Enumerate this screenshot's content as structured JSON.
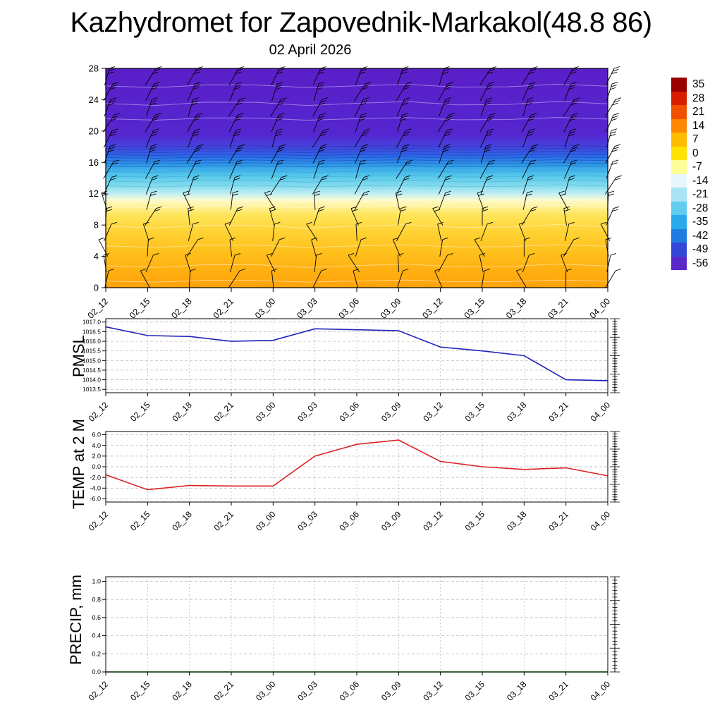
{
  "title": "Kazhydromet for Zapovednik-Markakol(48.8 86)",
  "date": "02 April 2026",
  "chart_data": [
    {
      "type": "heatmap",
      "title": "02 April 2026",
      "description": "Vertical cross-section: temperature shading (deg C) with wind barbs; warm colors near surface, cold aloft",
      "x": [
        "02_12",
        "02_15",
        "02_18",
        "02_21",
        "03_00",
        "03_03",
        "03_06",
        "03_09",
        "03_12",
        "03_15",
        "03_18",
        "03_21",
        "04_00"
      ],
      "ylim": [
        0,
        28
      ],
      "yticks": [
        0,
        4,
        8,
        12,
        16,
        20,
        24,
        28
      ],
      "gradient": [
        {
          "pos": 0.0,
          "color": "#5a1ec8"
        },
        {
          "pos": 0.3,
          "color": "#5526cf"
        },
        {
          "pos": 0.36,
          "color": "#4444dd"
        },
        {
          "pos": 0.4,
          "color": "#2a6ae8"
        },
        {
          "pos": 0.44,
          "color": "#2e9de8"
        },
        {
          "pos": 0.49,
          "color": "#55c8ea"
        },
        {
          "pos": 0.54,
          "color": "#8adeee"
        },
        {
          "pos": 0.575,
          "color": "#c8f0f2"
        },
        {
          "pos": 0.6,
          "color": "#fbfbd0"
        },
        {
          "pos": 0.625,
          "color": "#fff3a0"
        },
        {
          "pos": 0.67,
          "color": "#ffe458"
        },
        {
          "pos": 0.75,
          "color": "#ffd232"
        },
        {
          "pos": 0.84,
          "color": "#ffc01c"
        },
        {
          "pos": 0.93,
          "color": "#ffae10"
        },
        {
          "pos": 1.0,
          "color": "#ffa30a"
        }
      ],
      "colorbar": {
        "labels": [
          "35",
          "28",
          "21",
          "14",
          "7",
          "0",
          "-7",
          "-14",
          "-21",
          "-28",
          "-35",
          "-42",
          "-49",
          "-56"
        ],
        "colors": [
          "#990000",
          "#d81e00",
          "#f05000",
          "#ff8800",
          "#ffbb00",
          "#ffe200",
          "#ffff99",
          "#e8f6fc",
          "#a8e4f4",
          "#60ccee",
          "#2aaaec",
          "#1f7ce0",
          "#3448d8",
          "#5a28c8"
        ]
      },
      "wind_barbs": {
        "columns": 13,
        "rows": 14,
        "color": "#000000"
      }
    },
    {
      "type": "line",
      "ylabel": "PMSL",
      "color": "#2222bb",
      "x": [
        "02_12",
        "02_15",
        "02_18",
        "02_21",
        "03_00",
        "03_03",
        "03_06",
        "03_09",
        "03_12",
        "03_15",
        "03_18",
        "03_21",
        "04_00"
      ],
      "values": [
        1016.75,
        1016.3,
        1016.25,
        1016.0,
        1016.05,
        1016.65,
        1016.6,
        1016.55,
        1015.7,
        1015.5,
        1015.25,
        1014.0,
        1013.95
      ],
      "ylim": [
        1013.5,
        1017.0
      ],
      "yticks": [
        1017.0,
        1016.5,
        1016.0,
        1015.5,
        1015.0,
        1014.5,
        1014.0,
        1013.5
      ],
      "ytick_labels": [
        "1017.0",
        "1016.5",
        "1016.0",
        "1015.5",
        "1015.0",
        "1014.5",
        "1014.0",
        "1013.5"
      ],
      "grid": "dashed"
    },
    {
      "type": "line",
      "ylabel": "TEMP at 2 M",
      "color": "#dd2222",
      "x": [
        "02_12",
        "02_15",
        "02_18",
        "02_21",
        "03_00",
        "03_03",
        "03_06",
        "03_09",
        "03_12",
        "03_15",
        "03_18",
        "03_21",
        "04_00"
      ],
      "values": [
        -1.5,
        -4.3,
        -3.5,
        -3.6,
        -3.6,
        2.0,
        4.2,
        5.0,
        1.0,
        0.0,
        -0.5,
        -0.2,
        -1.7
      ],
      "ylim": [
        -6,
        6
      ],
      "yticks": [
        6,
        4,
        2,
        0,
        -2,
        -4,
        -6
      ],
      "ytick_labels": [
        "6.0",
        "4.0",
        "2.0",
        "0.0",
        "-2.0",
        "-4.0",
        "-6.0"
      ],
      "grid": "dashed"
    },
    {
      "type": "line",
      "ylabel": "PRECIP, mm",
      "color": "#007700",
      "x": [
        "02_12",
        "02_15",
        "02_18",
        "02_21",
        "03_00",
        "03_03",
        "03_06",
        "03_09",
        "03_12",
        "03_15",
        "03_18",
        "03_21",
        "04_00"
      ],
      "values": [
        0.0,
        0.0,
        0.0,
        0.0,
        0.0,
        0.0,
        0.0,
        0.0,
        0.0,
        0.0,
        0.0,
        0.0,
        0.0
      ],
      "ylim": [
        0,
        1.0
      ],
      "yticks": [
        1.0,
        0.8,
        0.6,
        0.4,
        0.2,
        0.0
      ],
      "ytick_labels": [
        "1.0",
        "0.8",
        "0.6",
        "0.4",
        "0.2",
        "0.0"
      ],
      "grid": "dashed"
    }
  ]
}
